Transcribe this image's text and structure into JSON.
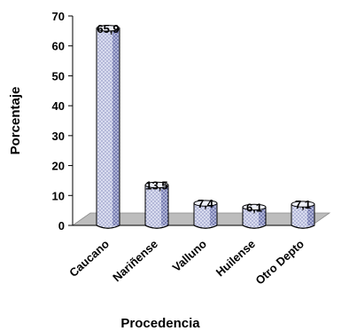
{
  "chart_data": {
    "type": "bar",
    "categories": [
      "Caucano",
      "Nariñense",
      "Valluno",
      "Huilense",
      "Otro Depto"
    ],
    "values": [
      65.9,
      13.5,
      7.4,
      6.1,
      7.1
    ],
    "data_labels": [
      "65,9",
      "13,5",
      "7,4",
      "6,1",
      "7,1"
    ],
    "title": "",
    "xlabel": "Procedencia",
    "ylabel": "Porcentaje",
    "ylim": [
      0,
      70
    ],
    "yticks": [
      0,
      10,
      20,
      30,
      40,
      50,
      60,
      70
    ],
    "grid": false,
    "legend": "none",
    "bar_fill": "#c8cde6",
    "bar_dots": "#7d83b8",
    "floor_fill": "#bdbdbd"
  }
}
